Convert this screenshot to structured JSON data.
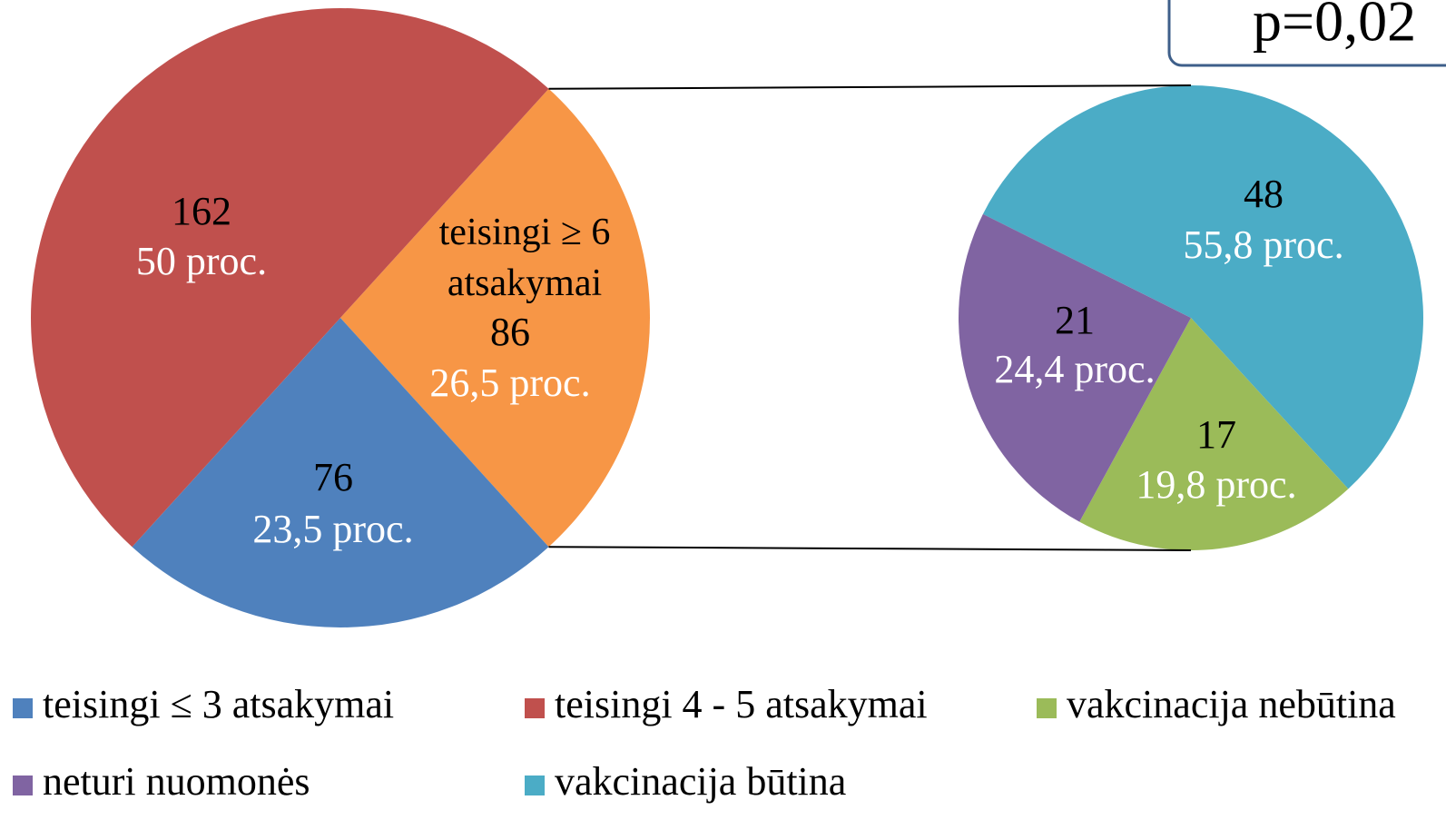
{
  "chart_data": [
    {
      "type": "pie",
      "categories": [
        "teisingi ≤ 3 atsakymai",
        "teisingi 4 - 5 atsakymai",
        "teisingi ≥ 6 atsakymai"
      ],
      "values": [
        76,
        162,
        86
      ],
      "percents": [
        23.5,
        50,
        26.5
      ],
      "percent_labels": [
        "23,5 proc.",
        "50 proc.",
        "26,5 proc."
      ],
      "colors": [
        "#4f81bd",
        "#c0504d",
        "#f79646"
      ],
      "annotation": "p=0,02"
    },
    {
      "type": "pie",
      "categories": [
        "vakcinacija būtina",
        "vakcinacija nebūtina",
        "neturi nuomonės"
      ],
      "values": [
        48,
        17,
        21
      ],
      "percents": [
        55.8,
        19.8,
        24.4
      ],
      "percent_labels": [
        "55,8 proc.",
        "19,8 proc.",
        "24,4 proc."
      ],
      "colors": [
        "#4bacc6",
        "#9bbb59",
        "#8064a2"
      ]
    }
  ]
}
